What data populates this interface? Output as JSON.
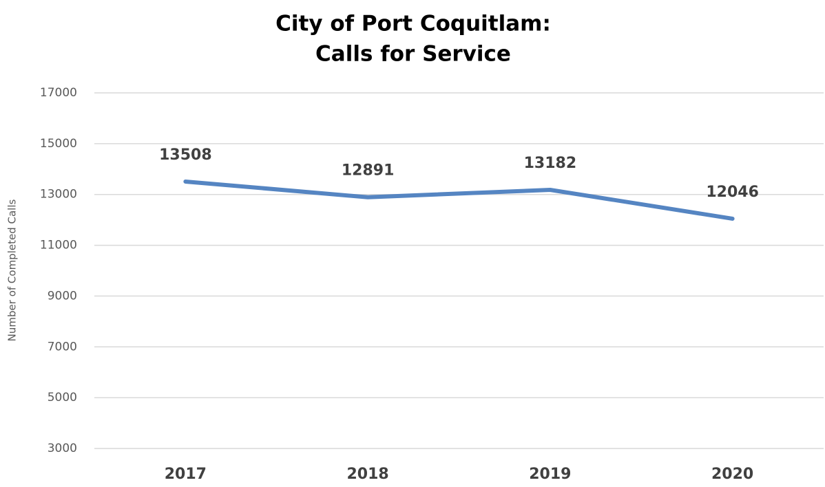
{
  "chart_data": {
    "type": "line",
    "title": [
      "City of Port Coquitlam:",
      "Calls for Service"
    ],
    "y_label": "Number of Completed Calls",
    "categories": [
      "2017",
      "2018",
      "2019",
      "2020"
    ],
    "series": [
      {
        "name": "Calls for Service",
        "color": "#5585c2",
        "values": [
          13508,
          12891,
          13182,
          12046
        ]
      }
    ],
    "ylim": [
      3000,
      17000
    ],
    "yticks": [
      3000,
      5000,
      7000,
      9000,
      11000,
      13000,
      15000,
      17000
    ],
    "grid": true
  }
}
